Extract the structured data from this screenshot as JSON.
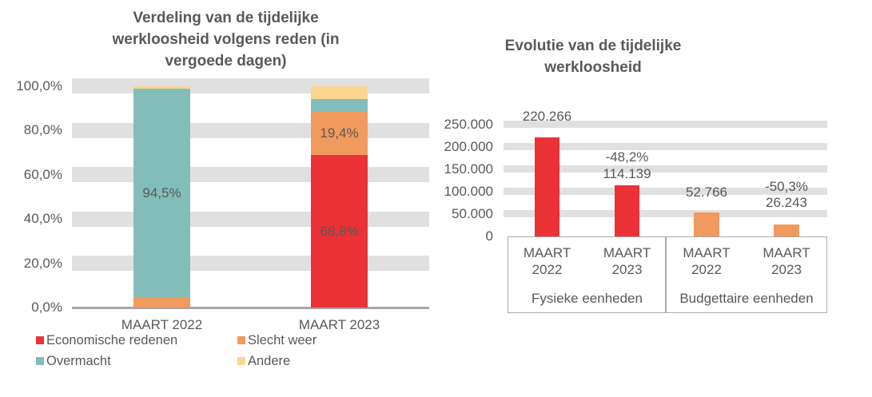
{
  "page": {
    "background": "#FFFFFF",
    "text_color": "#595959",
    "grid_band_color": "#E0E0E0",
    "axis_line_color": "#A6A6A6",
    "category_box_border_color": "#ABABAB"
  },
  "chart_data": [
    {
      "type": "bar",
      "stacked": true,
      "title": "Verdeling van de tijdelijke werkloosheid volgens reden (in vergoede dagen)",
      "categories": [
        "MAART 2022",
        "MAART 2023"
      ],
      "series": [
        {
          "name": "Economische redenen",
          "color": "#EB3237",
          "values": [
            0.0,
            68.8
          ],
          "data_labels": [
            "",
            "68,8%"
          ]
        },
        {
          "name": "Slecht weer",
          "color": "#F09A5D",
          "values": [
            4.3,
            19.4
          ],
          "data_labels": [
            "",
            "19,4%"
          ]
        },
        {
          "name": "Overmacht",
          "color": "#82BDBA",
          "values": [
            94.5,
            5.8
          ],
          "data_labels": [
            "94,5%",
            ""
          ]
        },
        {
          "name": "Andere",
          "color": "#FBD690",
          "values": [
            1.2,
            6.0
          ],
          "data_labels": [
            "",
            ""
          ]
        }
      ],
      "units": "percent",
      "ylim": [
        0,
        100
      ],
      "y_ticks": [
        {
          "label": "100,0%",
          "value": 100
        },
        {
          "label": "80,0%",
          "value": 80
        },
        {
          "label": "60,0%",
          "value": 60
        },
        {
          "label": "40,0%",
          "value": 40
        },
        {
          "label": "20,0%",
          "value": 20
        },
        {
          "label": "0,0%",
          "value": 0
        }
      ],
      "grid": "horizontal-bands",
      "legend_position": "bottom",
      "legend": [
        "Economische redenen",
        "Slecht weer",
        "Overmacht",
        "Andere"
      ]
    },
    {
      "type": "bar",
      "stacked": false,
      "title": "Evolutie van de tijdelijke werkloosheid",
      "ylim": [
        0,
        250000
      ],
      "y_ticks": [
        {
          "label": "250.000",
          "value": 250000
        },
        {
          "label": "200.000",
          "value": 200000
        },
        {
          "label": "150.000",
          "value": 150000
        },
        {
          "label": "100.000",
          "value": 100000
        },
        {
          "label": "50.000",
          "value": 50000
        },
        {
          "label": "0",
          "value": 0
        }
      ],
      "grid": "horizontal-bands",
      "groups": [
        {
          "label": "Fysieke eenheden",
          "bar_color": "#EB3237",
          "bars": [
            {
              "category": "MAART 2022",
              "value": 220266,
              "value_label": "220.266",
              "change_label": ""
            },
            {
              "category": "MAART 2023",
              "value": 114139,
              "value_label": "114.139",
              "change_label": "-48,2%"
            }
          ]
        },
        {
          "label": "Budgettaire eenheden",
          "bar_color": "#F09A5D",
          "bars": [
            {
              "category": "MAART 2022",
              "value": 52766,
              "value_label": "52.766",
              "change_label": ""
            },
            {
              "category": "MAART 2023",
              "value": 26243,
              "value_label": "26.243",
              "change_label": "-50,3%"
            }
          ]
        }
      ]
    }
  ]
}
